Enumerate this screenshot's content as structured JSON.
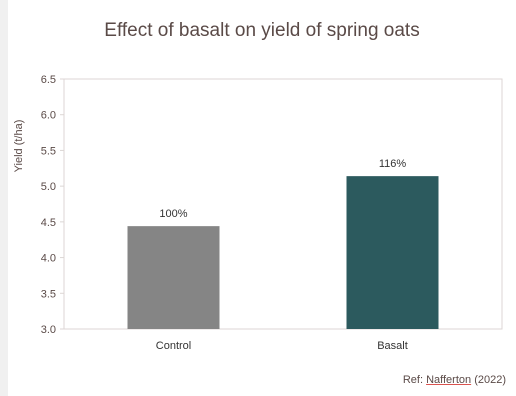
{
  "chart_data": {
    "type": "bar",
    "title": "Effect of basalt on yield of spring oats",
    "ylabel": "Yield (t/ha)",
    "xlabel": "",
    "categories": [
      "Control",
      "Basalt"
    ],
    "values": [
      4.44,
      5.14
    ],
    "data_labels": [
      "100%",
      "116%"
    ],
    "bar_colors": [
      "#858585",
      "#2c5a5e"
    ],
    "ylim": [
      3.0,
      6.5
    ],
    "yticks": [
      "3.0",
      "3.5",
      "4.0",
      "4.5",
      "5.0",
      "5.5",
      "6.0",
      "6.5"
    ],
    "grid": false
  },
  "footer": {
    "ref_prefix": "Ref: ",
    "ref_name": "Nafferton",
    "ref_suffix": " (2022)"
  }
}
